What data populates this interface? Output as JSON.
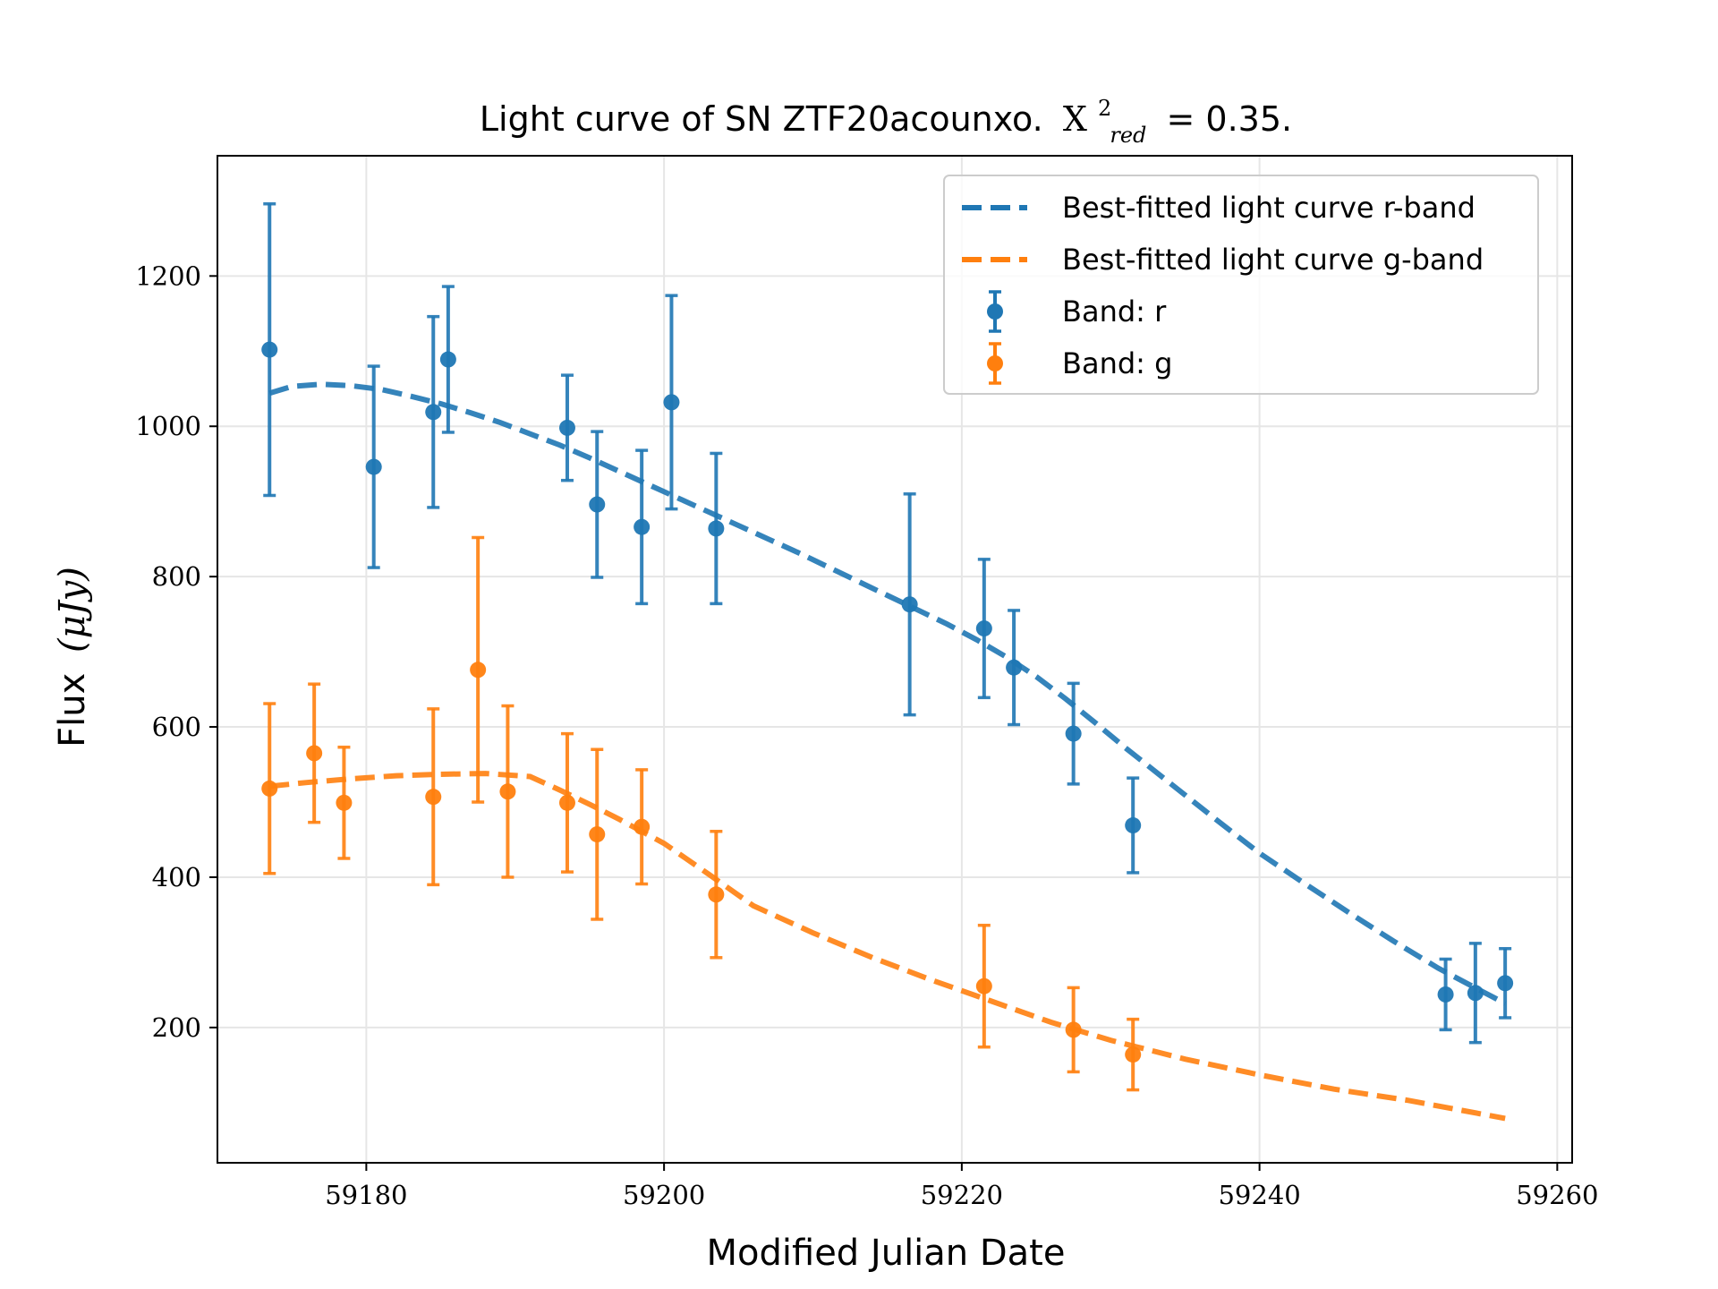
{
  "chart_data": {
    "type": "scatter",
    "title_prefix": "Light curve of SN ZTF20acounxo.",
    "title_stat_symbol": "X",
    "title_stat_sup": "2",
    "title_stat_sub": "red",
    "title_stat_value": "= 0.35.",
    "xlabel": "Modified Julian Date",
    "ylabel_text": "Flux",
    "ylabel_unit": "(μJy)",
    "xlim": [
      59170,
      59261
    ],
    "ylim": [
      20,
      1360
    ],
    "xticks": [
      59180,
      59200,
      59220,
      59240,
      59260
    ],
    "yticks": [
      200,
      400,
      600,
      800,
      1000,
      1200
    ],
    "grid": true,
    "legend_position": "top-right",
    "colors": {
      "r": "#1f77b4",
      "g": "#ff7f0e"
    },
    "series": [
      {
        "name": "Best-fitted light curve r-band",
        "kind": "line",
        "band": "r",
        "x": [
          59173.5,
          59175,
          59177,
          59179,
          59181,
          59183,
          59185,
          59187,
          59189,
          59191,
          59193,
          59195,
          59197,
          59199,
          59201,
          59203,
          59205,
          59207,
          59209,
          59211,
          59213,
          59215,
          59217,
          59219,
          59221,
          59223,
          59225,
          59227,
          59229,
          59231,
          59234,
          59237,
          59240,
          59243,
          59246,
          59249,
          59252,
          59254,
          59256.5
        ],
        "y": [
          1044,
          1053,
          1056,
          1054,
          1049,
          1040,
          1030,
          1018,
          1005,
          990,
          975,
          958,
          940,
          922,
          904,
          886,
          868,
          850,
          832,
          813,
          794,
          775,
          756,
          737,
          716,
          693,
          667,
          637,
          605,
          572,
          525,
          478,
          432,
          392,
          353,
          315,
          279,
          258,
          232
        ]
      },
      {
        "name": "Best-fitted light curve g-band",
        "kind": "line",
        "band": "g",
        "x": [
          59173.5,
          59176,
          59179,
          59182,
          59185,
          59188,
          59191,
          59193,
          59195,
          59197,
          59200,
          59203,
          59206,
          59210,
          59214,
          59218,
          59222,
          59226,
          59230,
          59235,
          59240,
          59245,
          59250,
          59256.5
        ],
        "y": [
          521,
          526,
          531,
          535,
          537,
          538,
          534,
          516,
          497,
          477,
          445,
          404,
          362,
          326,
          293,
          263,
          235,
          207,
          183,
          158,
          137,
          118,
          103,
          79
        ]
      },
      {
        "name": "Band: r",
        "kind": "errorbar",
        "band": "r",
        "x": [
          59173.5,
          59180.5,
          59184.5,
          59185.5,
          59193.5,
          59195.5,
          59198.5,
          59200.5,
          59203.5,
          59216.5,
          59221.5,
          59223.5,
          59227.5,
          59231.5,
          59252.5,
          59254.5,
          59256.5
        ],
        "y": [
          1102,
          946,
          1019,
          1089,
          998,
          896,
          866,
          1032,
          864,
          763,
          731,
          679,
          591,
          469,
          244,
          246,
          259
        ],
        "err": [
          194,
          134,
          127,
          97,
          70,
          97,
          102,
          142,
          100,
          147,
          92,
          76,
          67,
          63,
          47,
          66,
          46
        ]
      },
      {
        "name": "Band: g",
        "kind": "errorbar",
        "band": "g",
        "x": [
          59173.5,
          59176.5,
          59178.5,
          59184.5,
          59187.5,
          59189.5,
          59193.5,
          59195.5,
          59198.5,
          59203.5,
          59221.5,
          59227.5,
          59231.5
        ],
        "y": [
          518,
          565,
          499,
          507,
          676,
          514,
          499,
          457,
          467,
          377,
          255,
          197,
          164
        ],
        "err": [
          113,
          92,
          74,
          117,
          176,
          114,
          92,
          113,
          76,
          84,
          81,
          56,
          47
        ]
      }
    ]
  }
}
